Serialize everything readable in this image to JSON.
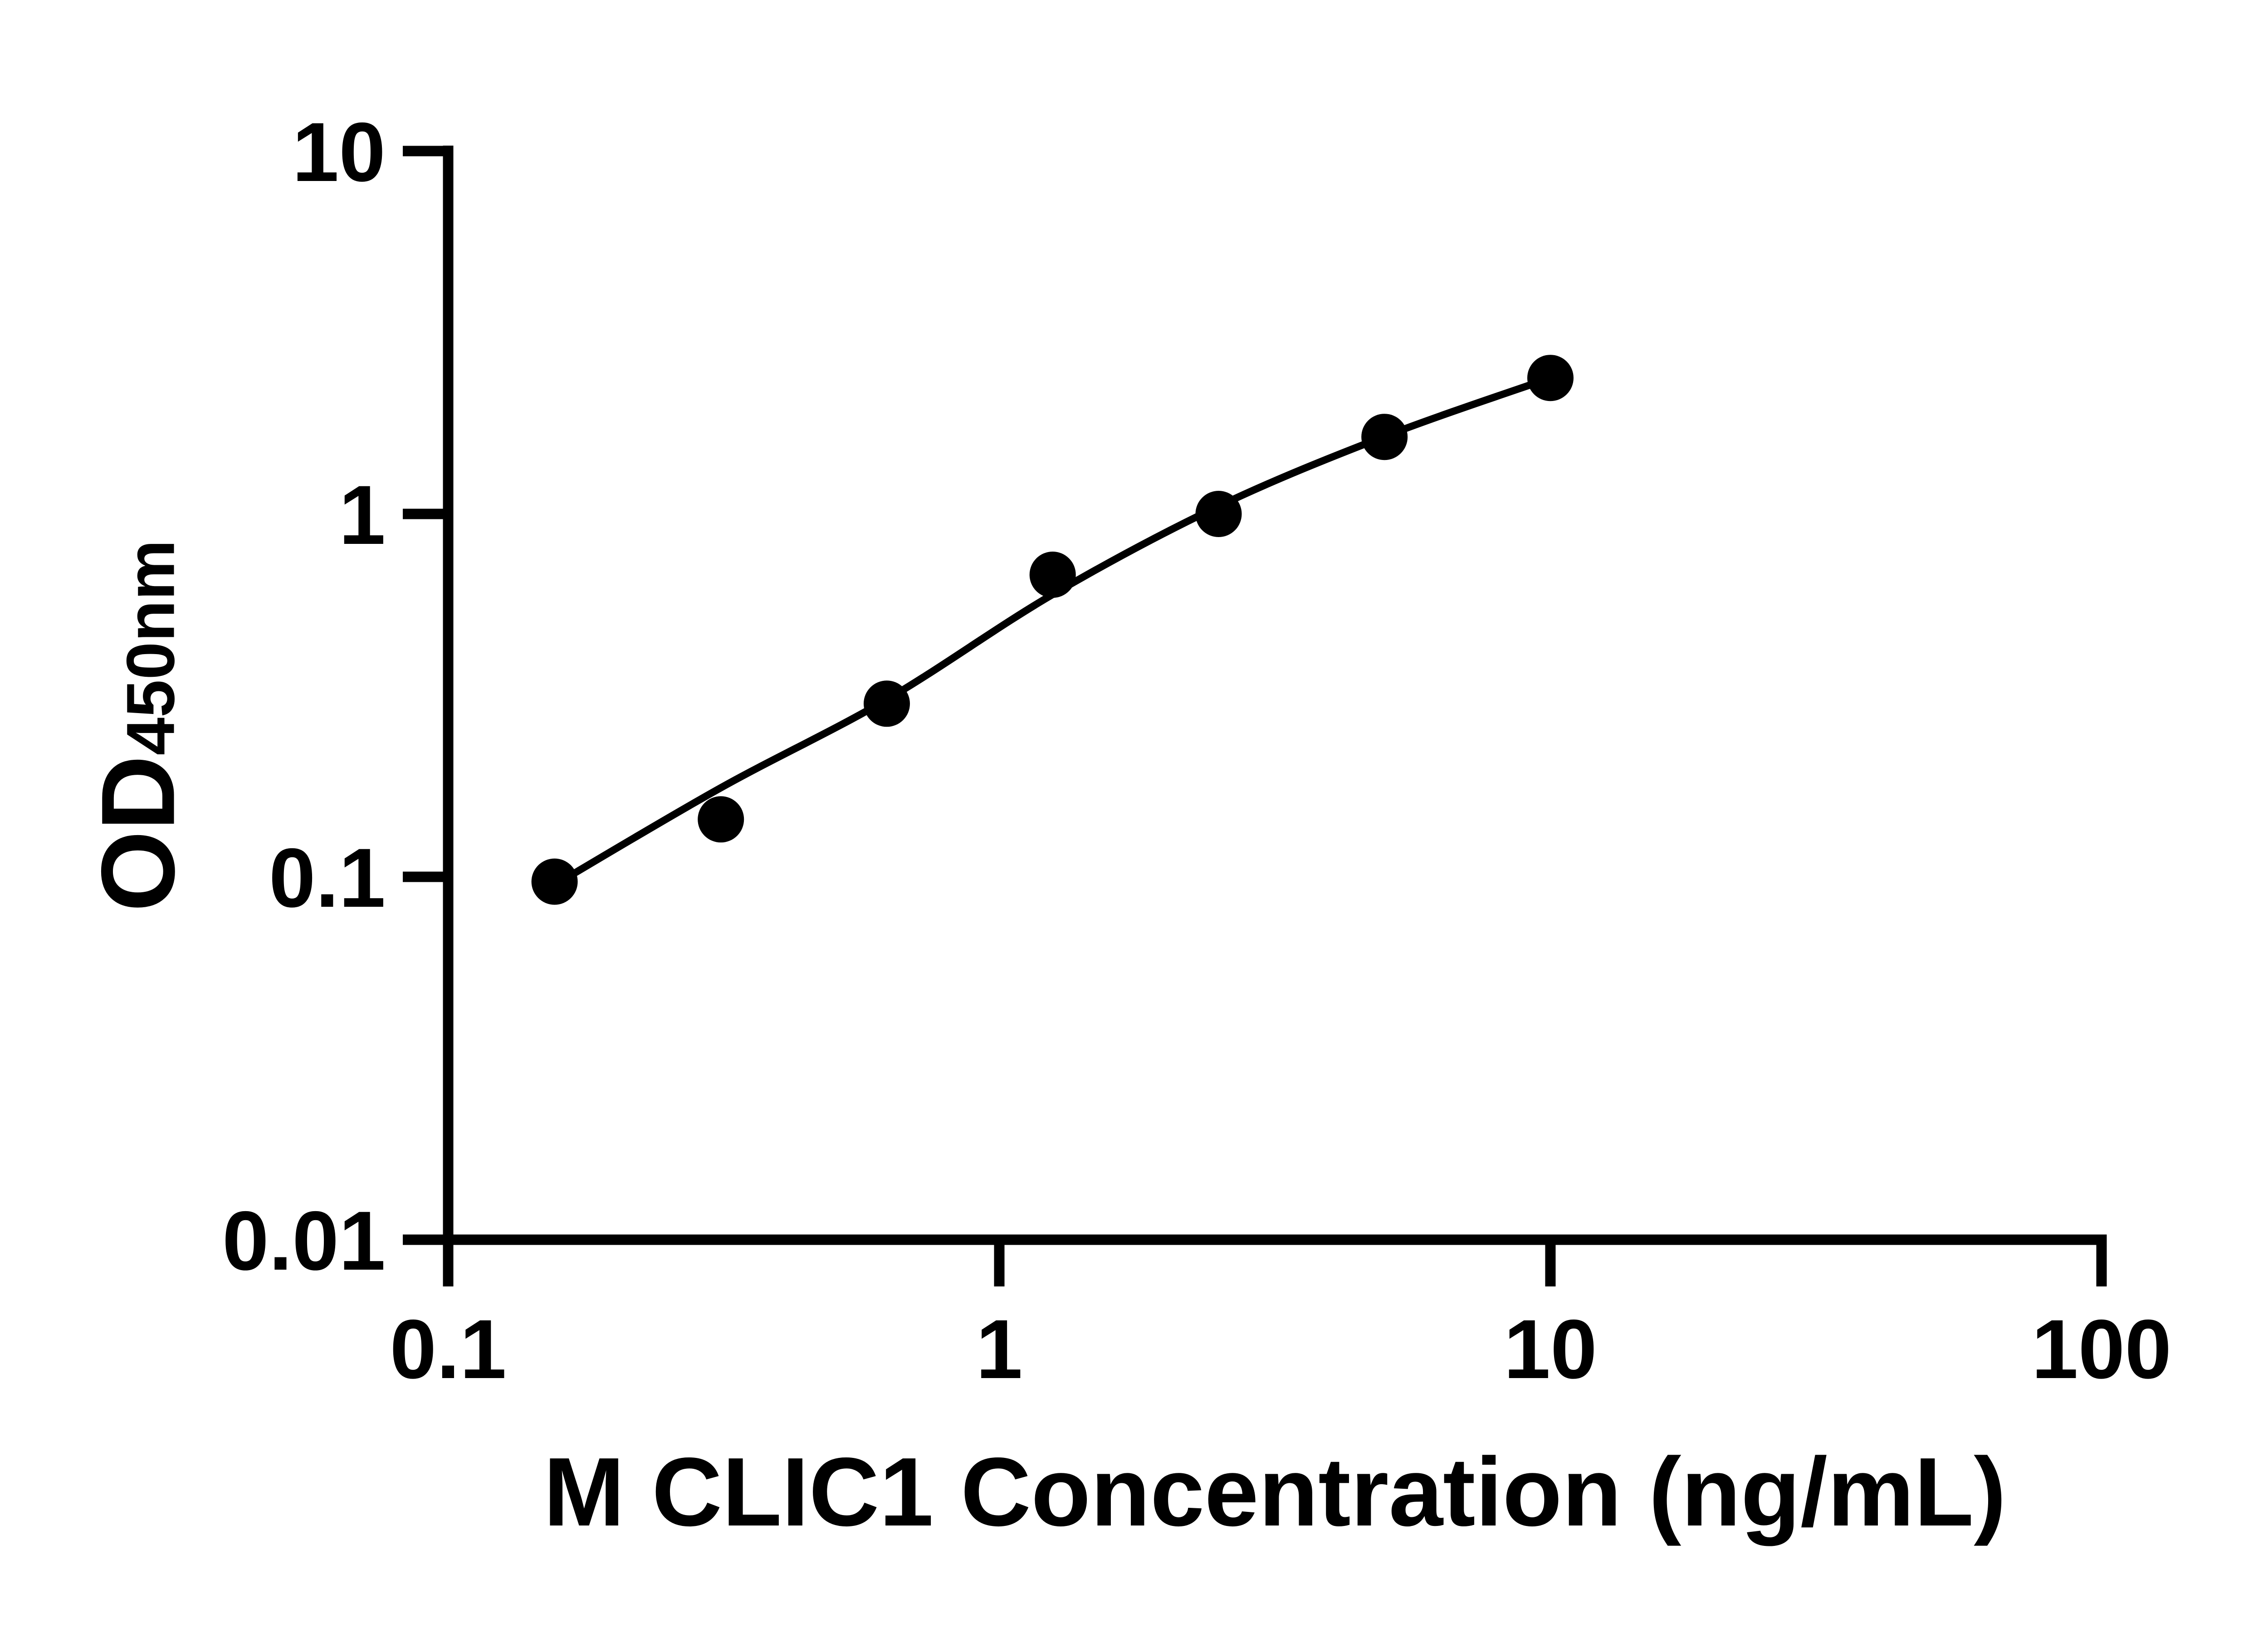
{
  "figure": {
    "background_color": "#ffffff",
    "ink_color": "#000000"
  },
  "chart_data": {
    "type": "scatter",
    "title": "",
    "xlabel": "M CLIC1 Concentration (ng/mL)",
    "ylabel": "OD450nm",
    "ylabel_main": "OD",
    "ylabel_sub": "450nm",
    "x_scale": "log10",
    "y_scale": "log10",
    "xlim": [
      0.1,
      100
    ],
    "ylim": [
      0.01,
      10
    ],
    "x_ticks": {
      "values": [
        0.1,
        1,
        10,
        100
      ],
      "labels": [
        "0.1",
        "1",
        "10",
        "100"
      ]
    },
    "y_ticks": {
      "values": [
        0.01,
        0.1,
        1,
        10
      ],
      "labels": [
        "10",
        "1",
        "0.1",
        "0.01"
      ],
      "labels_by_value": {
        "0.01": "0.01",
        "0.1": "0.1",
        "1": "1",
        "10": "10"
      }
    },
    "grid": false,
    "legend": "none",
    "series": [
      {
        "name": "standard-points",
        "kind": "scatter",
        "marker": "filled-circle",
        "color": "#000000",
        "x": [
          0.156,
          0.3125,
          0.625,
          1.25,
          2.5,
          5,
          10
        ],
        "y": [
          0.097,
          0.144,
          0.3,
          0.68,
          1.0,
          1.63,
          2.37
        ]
      },
      {
        "name": "fit-curve",
        "kind": "line",
        "color": "#000000",
        "x": [
          0.156,
          0.3125,
          0.625,
          1.25,
          2.5,
          5,
          10
        ],
        "y": [
          0.095,
          0.176,
          0.308,
          0.6,
          1.05,
          1.635,
          2.37
        ]
      }
    ]
  }
}
